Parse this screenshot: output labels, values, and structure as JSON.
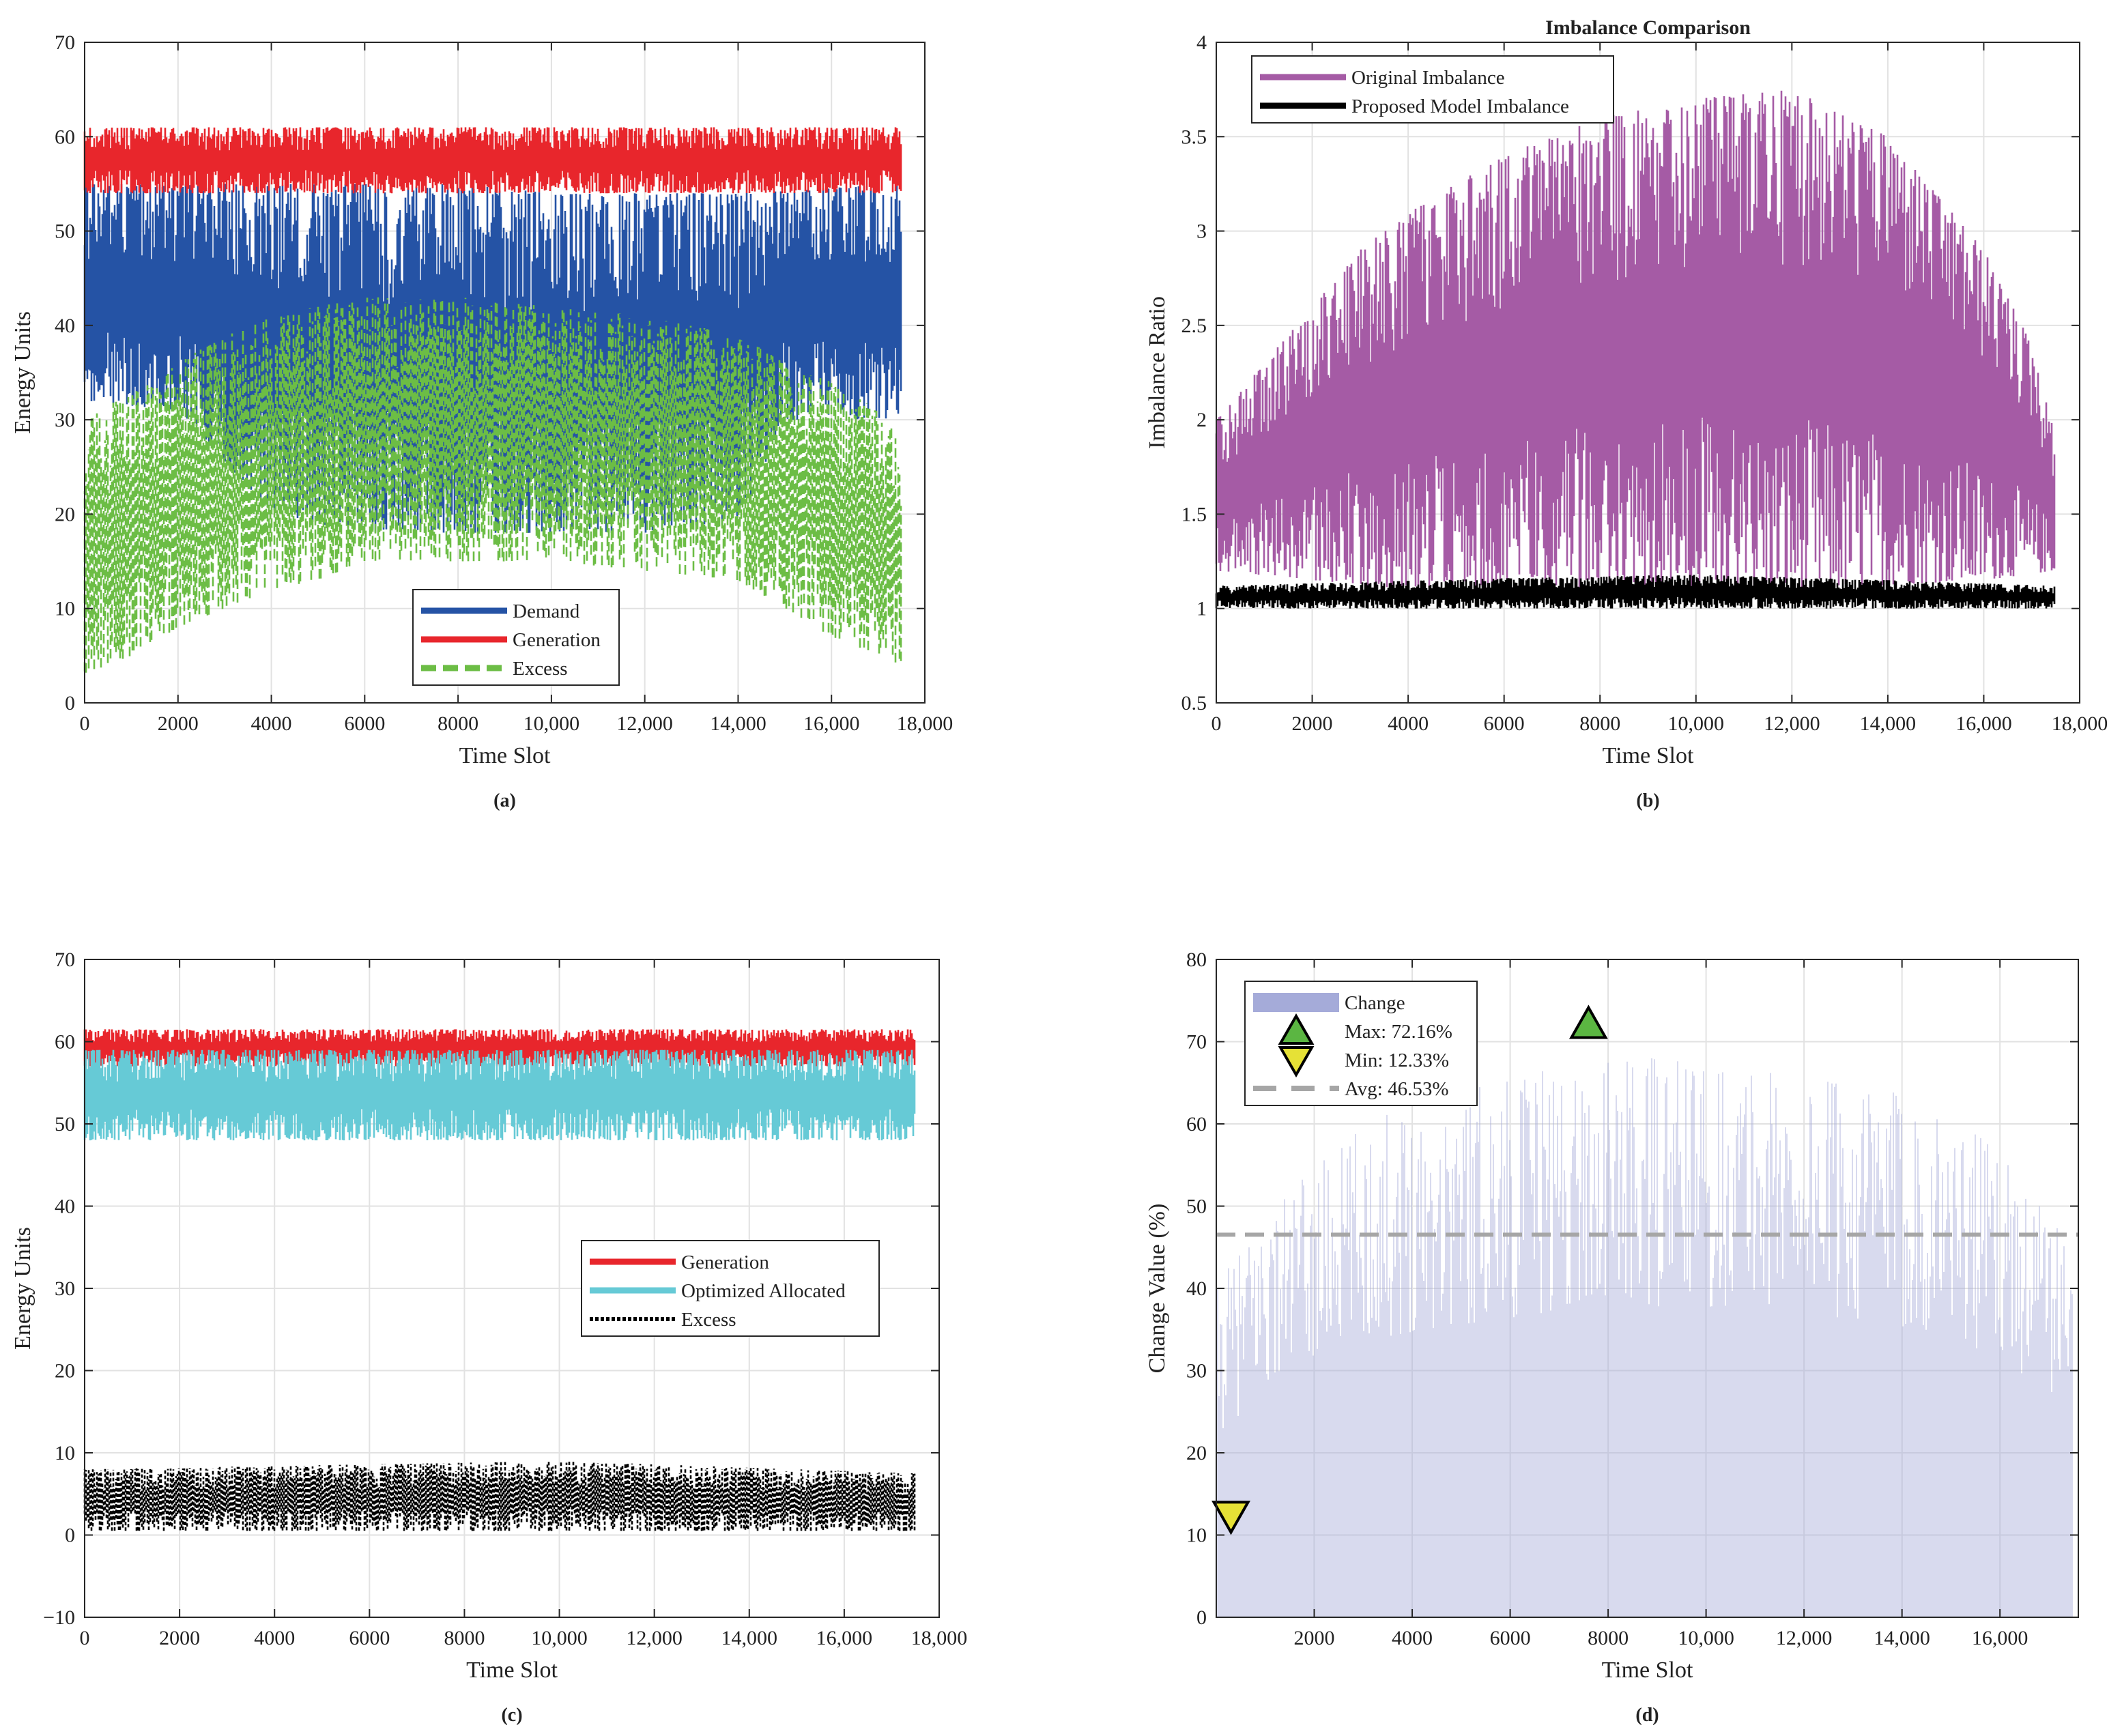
{
  "chart_data": [
    {
      "id": "a",
      "type": "line",
      "panel_label": "(a)",
      "title": "",
      "xlabel": "Time Slot",
      "ylabel": "Energy Units",
      "xlim": [
        0,
        18000
      ],
      "ylim": [
        0,
        70
      ],
      "xticks": [
        0,
        2000,
        4000,
        6000,
        8000,
        10000,
        12000,
        14000,
        16000,
        18000
      ],
      "xtick_labels": [
        "0",
        "2000",
        "4000",
        "6000",
        "8000",
        "10,000",
        "12,000",
        "14,000",
        "16,000",
        "18,000"
      ],
      "yticks": [
        0,
        10,
        20,
        30,
        40,
        50,
        60,
        70
      ],
      "ytick_labels": [
        "0",
        "10",
        "20",
        "30",
        "40",
        "50",
        "60",
        "70"
      ],
      "grid": true,
      "legend_position": "bottom-center",
      "series": [
        {
          "name": "Demand",
          "color": "#2553a5",
          "style": "solid",
          "band": {
            "low": [
              [
                0,
                32
              ],
              [
                2000,
                31
              ],
              [
                4000,
                20
              ],
              [
                6000,
                18
              ],
              [
                8000,
                18
              ],
              [
                10000,
                18
              ],
              [
                12000,
                18
              ],
              [
                14000,
                19
              ],
              [
                15000,
                30
              ],
              [
                17500,
                30
              ]
            ],
            "high": [
              [
                0,
                55
              ],
              [
                4000,
                55
              ],
              [
                6000,
                55
              ],
              [
                8000,
                55
              ],
              [
                10000,
                54
              ],
              [
                12000,
                54
              ],
              [
                14000,
                54
              ],
              [
                17500,
                55
              ]
            ]
          }
        },
        {
          "name": "Generation",
          "color": "#e8262c",
          "style": "solid",
          "band": {
            "low": [
              [
                0,
                54
              ],
              [
                17500,
                54
              ]
            ],
            "high": [
              [
                0,
                61
              ],
              [
                17500,
                61
              ]
            ]
          }
        },
        {
          "name": "Excess",
          "color": "#6cbd45",
          "style": "dashed",
          "band": {
            "low": [
              [
                0,
                3
              ],
              [
                1000,
                5
              ],
              [
                2000,
                8
              ],
              [
                3000,
                10
              ],
              [
                4000,
                12
              ],
              [
                5000,
                13
              ],
              [
                6000,
                15
              ],
              [
                8000,
                15
              ],
              [
                10000,
                15
              ],
              [
                12000,
                14
              ],
              [
                14000,
                13
              ],
              [
                15000,
                10
              ],
              [
                16000,
                7
              ],
              [
                17500,
                4
              ]
            ],
            "high": [
              [
                0,
                30
              ],
              [
                1000,
                33
              ],
              [
                2000,
                36
              ],
              [
                3000,
                39
              ],
              [
                4000,
                41
              ],
              [
                6000,
                43
              ],
              [
                8000,
                43
              ],
              [
                10000,
                42
              ],
              [
                12000,
                41
              ],
              [
                14000,
                39
              ],
              [
                15000,
                36
              ],
              [
                16000,
                34
              ],
              [
                17000,
                31
              ],
              [
                17500,
                28
              ]
            ]
          }
        }
      ]
    },
    {
      "id": "b",
      "type": "line",
      "panel_label": "(b)",
      "title": "Imbalance Comparison",
      "xlabel": "Time Slot",
      "ylabel": "Imbalance Ratio",
      "xlim": [
        0,
        18000
      ],
      "ylim": [
        0.5,
        4
      ],
      "xticks": [
        0,
        2000,
        4000,
        6000,
        8000,
        10000,
        12000,
        14000,
        16000,
        18000
      ],
      "xtick_labels": [
        "0",
        "2000",
        "4000",
        "6000",
        "8000",
        "10,000",
        "12,000",
        "14,000",
        "16,000",
        "18,000"
      ],
      "yticks": [
        0.5,
        1,
        1.5,
        2,
        2.5,
        3,
        3.5,
        4
      ],
      "ytick_labels": [
        "0.5",
        "1",
        "1.5",
        "2",
        "2.5",
        "3",
        "3.5",
        "4"
      ],
      "grid": true,
      "legend_position": "top-left",
      "series": [
        {
          "name": "Original Imbalance",
          "color": "#a55ba5",
          "style": "solid",
          "band": {
            "low": [
              [
                0,
                1.2
              ],
              [
                2000,
                1.15
              ],
              [
                4000,
                1.1
              ],
              [
                8000,
                1.1
              ],
              [
                12000,
                1.1
              ],
              [
                16000,
                1.15
              ],
              [
                17500,
                1.2
              ]
            ],
            "high": [
              [
                0,
                2.0
              ],
              [
                1000,
                2.3
              ],
              [
                2000,
                2.6
              ],
              [
                3000,
                2.9
              ],
              [
                4000,
                3.1
              ],
              [
                6000,
                3.4
              ],
              [
                8000,
                3.6
              ],
              [
                10000,
                3.7
              ],
              [
                12000,
                3.75
              ],
              [
                14000,
                3.5
              ],
              [
                15000,
                3.2
              ],
              [
                16000,
                2.9
              ],
              [
                17000,
                2.4
              ],
              [
                17500,
                1.9
              ]
            ]
          }
        },
        {
          "name": "Proposed Model Imbalance",
          "color": "#000000",
          "style": "solid",
          "band": {
            "low": [
              [
                0,
                1.0
              ],
              [
                17500,
                1.0
              ]
            ],
            "high": [
              [
                0,
                1.12
              ],
              [
                6000,
                1.16
              ],
              [
                10000,
                1.18
              ],
              [
                14000,
                1.15
              ],
              [
                17500,
                1.12
              ]
            ]
          }
        }
      ]
    },
    {
      "id": "c",
      "type": "line",
      "panel_label": "(c)",
      "title": "",
      "xlabel": "Time Slot",
      "ylabel": "Energy Units",
      "xlim": [
        0,
        18000
      ],
      "ylim": [
        -10,
        70
      ],
      "xticks": [
        0,
        2000,
        4000,
        6000,
        8000,
        10000,
        12000,
        14000,
        16000,
        18000
      ],
      "xtick_labels": [
        "0",
        "2000",
        "4000",
        "6000",
        "8000",
        "10,000",
        "12,000",
        "14,000",
        "16,000",
        "18,000"
      ],
      "yticks": [
        -10,
        0,
        10,
        20,
        30,
        40,
        50,
        60,
        70
      ],
      "ytick_labels": [
        "−10",
        "0",
        "10",
        "20",
        "30",
        "40",
        "50",
        "60",
        "70"
      ],
      "grid": true,
      "legend_position": "right-center",
      "series": [
        {
          "name": "Generation",
          "color": "#e8262c",
          "style": "solid",
          "band": {
            "low": [
              [
                0,
                57
              ],
              [
                17500,
                57
              ]
            ],
            "high": [
              [
                0,
                61.5
              ],
              [
                17500,
                61.5
              ]
            ]
          }
        },
        {
          "name": "Optimized Allocated",
          "color": "#66cad6",
          "style": "solid",
          "band": {
            "low": [
              [
                0,
                48
              ],
              [
                17500,
                48
              ]
            ],
            "high": [
              [
                0,
                59
              ],
              [
                17500,
                59
              ]
            ]
          }
        },
        {
          "name": "Excess",
          "color": "#000000",
          "style": "dotted",
          "band": {
            "low": [
              [
                0,
                0.5
              ],
              [
                17500,
                0.5
              ]
            ],
            "high": [
              [
                0,
                8
              ],
              [
                10000,
                9
              ],
              [
                17500,
                7.5
              ]
            ]
          }
        }
      ]
    },
    {
      "id": "d",
      "type": "bar",
      "panel_label": "(d)",
      "title": "",
      "xlabel": "Time Slot",
      "ylabel": "Change Value (%)",
      "xlim": [
        0,
        17600
      ],
      "ylim": [
        0,
        80
      ],
      "xticks": [
        2000,
        4000,
        6000,
        8000,
        10000,
        12000,
        14000,
        16000
      ],
      "xtick_labels": [
        "2000",
        "4000",
        "6000",
        "8000",
        "10,000",
        "12,000",
        "14,000",
        "16,000"
      ],
      "yticks": [
        0,
        10,
        20,
        30,
        40,
        50,
        60,
        70,
        80
      ],
      "ytick_labels": [
        "0",
        "10",
        "20",
        "30",
        "40",
        "50",
        "60",
        "70",
        "80"
      ],
      "grid": true,
      "legend_position": "top-left",
      "series": [
        {
          "name": "Change",
          "color": "#a5abd9",
          "envelope": [
            [
              0,
              40
            ],
            [
              1000,
              50
            ],
            [
              2000,
              55
            ],
            [
              3000,
              60
            ],
            [
              4000,
              63
            ],
            [
              6000,
              66
            ],
            [
              8000,
              68
            ],
            [
              10000,
              68
            ],
            [
              12000,
              67
            ],
            [
              14000,
              64
            ],
            [
              15000,
              62
            ],
            [
              16000,
              57
            ],
            [
              17000,
              50
            ],
            [
              17500,
              45
            ]
          ]
        }
      ],
      "markers": {
        "max": {
          "label": "Max: 72.16%",
          "x": 7600,
          "y": 72.16,
          "color": "#5bb642"
        },
        "min": {
          "label": "Min: 12.33%",
          "x": 300,
          "y": 12.33,
          "color": "#e6e136"
        },
        "avg": {
          "label": "Avg: 46.53%",
          "y": 46.53,
          "color": "#a6a6a6"
        }
      }
    }
  ]
}
